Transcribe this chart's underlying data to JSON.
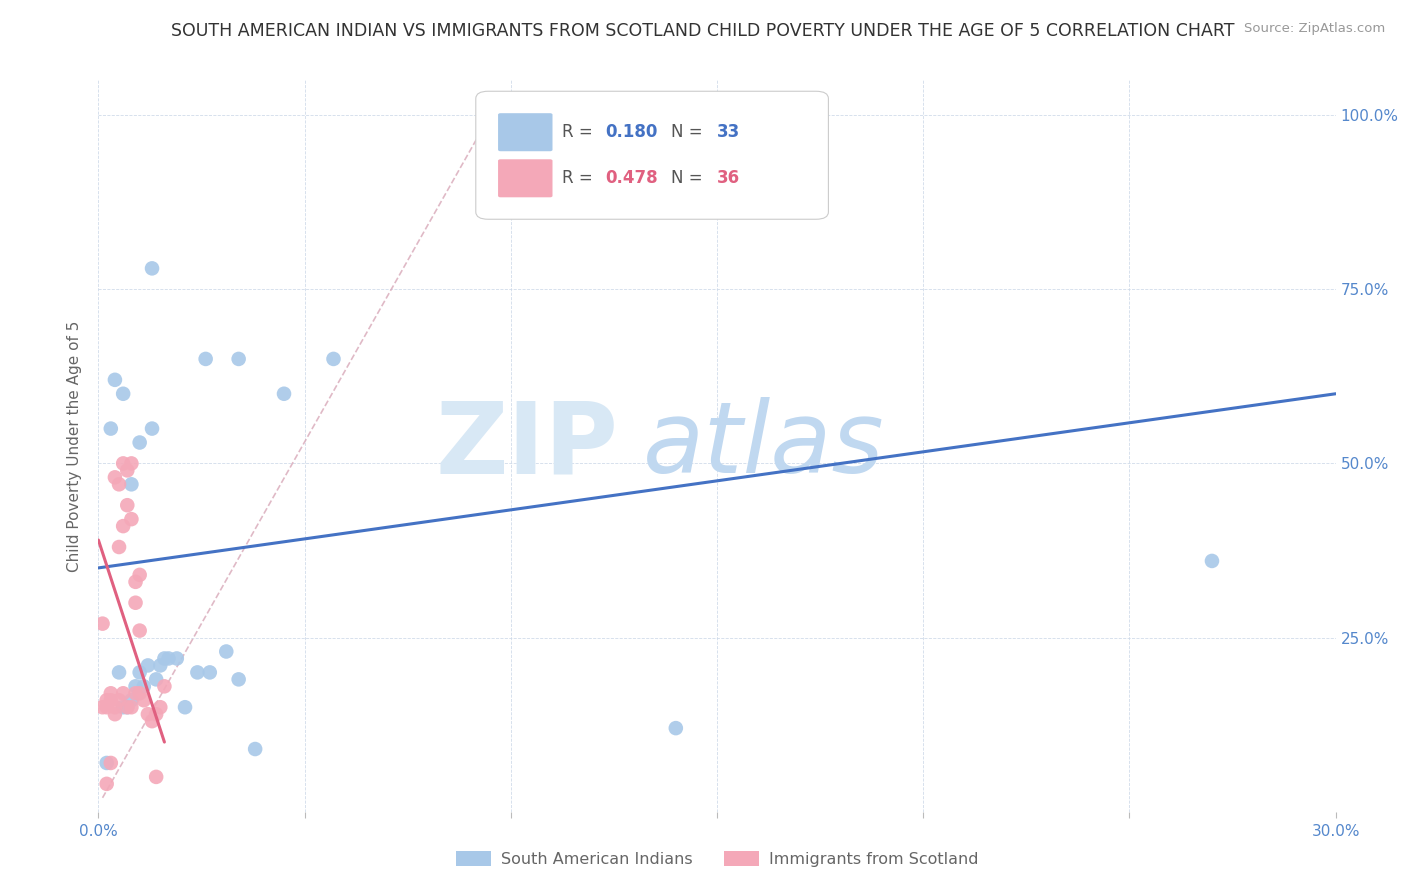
{
  "title": "SOUTH AMERICAN INDIAN VS IMMIGRANTS FROM SCOTLAND CHILD POVERTY UNDER THE AGE OF 5 CORRELATION CHART",
  "source": "Source: ZipAtlas.com",
  "ylabel": "Child Poverty Under the Age of 5",
  "xlim": [
    0.0,
    0.3
  ],
  "ylim": [
    0.0,
    1.05
  ],
  "yticks": [
    0.25,
    0.5,
    0.75,
    1.0
  ],
  "ytick_labels": [
    "25.0%",
    "50.0%",
    "75.0%",
    "100.0%"
  ],
  "xticks": [
    0.0,
    0.05,
    0.1,
    0.15,
    0.2,
    0.25,
    0.3
  ],
  "xtick_labels": [
    "0.0%",
    "",
    "",
    "",
    "",
    "",
    "30.0%"
  ],
  "legend_R1": "0.180",
  "legend_N1": "33",
  "legend_R2": "0.478",
  "legend_N2": "36",
  "blue_color": "#a8c8e8",
  "pink_color": "#f4a8b8",
  "trend_blue": "#4472c4",
  "trend_pink": "#e06080",
  "blue_scatter_x": [
    0.002,
    0.013,
    0.026,
    0.034,
    0.045,
    0.057,
    0.003,
    0.005,
    0.006,
    0.007,
    0.008,
    0.009,
    0.01,
    0.011,
    0.013,
    0.015,
    0.017,
    0.019,
    0.021,
    0.024,
    0.027,
    0.031,
    0.034,
    0.038,
    0.14,
    0.27,
    0.004,
    0.006,
    0.008,
    0.01,
    0.012,
    0.014,
    0.016
  ],
  "blue_scatter_y": [
    0.07,
    0.78,
    0.65,
    0.65,
    0.6,
    0.65,
    0.55,
    0.2,
    0.15,
    0.15,
    0.16,
    0.18,
    0.2,
    0.18,
    0.55,
    0.21,
    0.22,
    0.22,
    0.15,
    0.2,
    0.2,
    0.23,
    0.19,
    0.09,
    0.12,
    0.36,
    0.62,
    0.6,
    0.47,
    0.53,
    0.21,
    0.19,
    0.22
  ],
  "pink_scatter_x": [
    0.001,
    0.002,
    0.003,
    0.003,
    0.004,
    0.004,
    0.005,
    0.005,
    0.006,
    0.006,
    0.007,
    0.007,
    0.008,
    0.008,
    0.009,
    0.009,
    0.01,
    0.01,
    0.011,
    0.012,
    0.013,
    0.014,
    0.014,
    0.015,
    0.016,
    0.001,
    0.002,
    0.003,
    0.004,
    0.005,
    0.006,
    0.007,
    0.008,
    0.009,
    0.01,
    0.002
  ],
  "pink_scatter_y": [
    0.27,
    0.15,
    0.16,
    0.07,
    0.14,
    0.48,
    0.16,
    0.47,
    0.17,
    0.5,
    0.15,
    0.49,
    0.15,
    0.5,
    0.17,
    0.3,
    0.17,
    0.34,
    0.16,
    0.14,
    0.13,
    0.14,
    0.05,
    0.15,
    0.18,
    0.15,
    0.16,
    0.17,
    0.15,
    0.38,
    0.41,
    0.44,
    0.42,
    0.33,
    0.26,
    0.04
  ],
  "blue_trend_x": [
    0.0,
    0.3
  ],
  "blue_trend_y": [
    0.35,
    0.6
  ],
  "pink_solid_trend_x": [
    0.0,
    0.016
  ],
  "pink_solid_trend_y": [
    0.39,
    0.1
  ],
  "dashed_trend_x": [
    0.001,
    0.095
  ],
  "dashed_trend_y": [
    0.02,
    1.0
  ],
  "watermark_zip_color": "#d8e8f5",
  "watermark_atlas_color": "#c0d8f0"
}
